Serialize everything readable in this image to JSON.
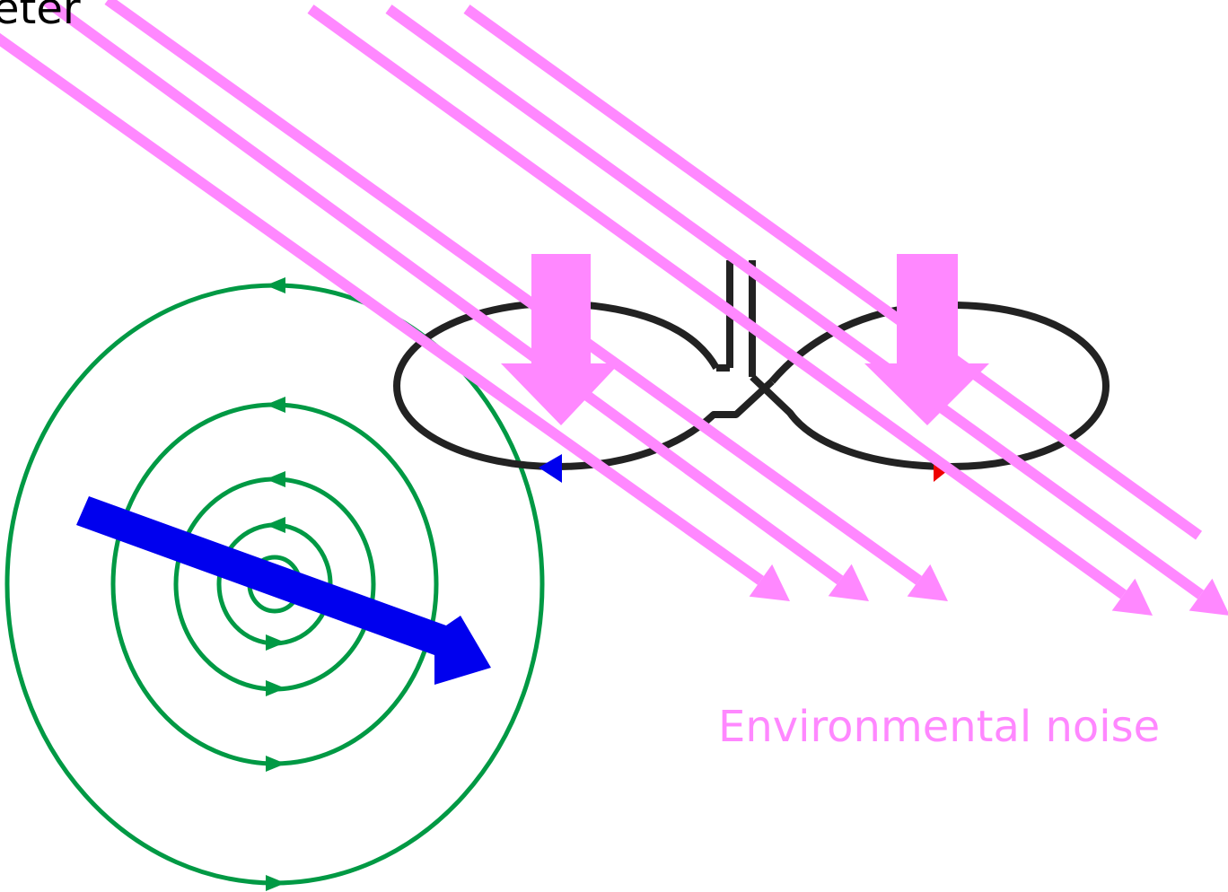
{
  "labels": {
    "top_left_fragment": "eter",
    "environmental_noise": "Environmental noise"
  },
  "colors": {
    "noise": "#ff88ff",
    "field_lines": "#009944",
    "current": "#0000ee",
    "coil": "#222222",
    "marker_red": "#ee0000",
    "text": "#000000",
    "background": "#ffffff"
  },
  "icons": {
    "noise_arrows": "diagonal-arrow",
    "flux_arrows": "down-arrow",
    "current_arrow": "diagonal-arrow",
    "field_markers": "triangle-marker"
  }
}
